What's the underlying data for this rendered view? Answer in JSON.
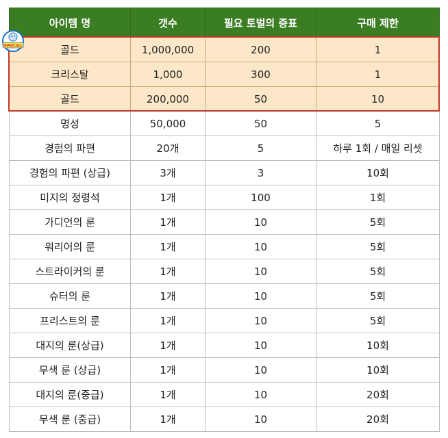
{
  "table": {
    "headers": [
      "아이템 명",
      "갯수",
      "필요 토벌의 증표",
      "구매 제한"
    ],
    "rows": [
      [
        "골드",
        "1,000,000",
        "200",
        "1"
      ],
      [
        "크리스탈",
        "1,000",
        "300",
        "1"
      ],
      [
        "골드",
        "200,000",
        "50",
        "10"
      ],
      [
        "명성",
        "50,000",
        "50",
        "5"
      ],
      [
        "경험의 파편",
        "20개",
        "5",
        "하루 1회 / 매일 리셋"
      ],
      [
        "경험의 파편 (상급)",
        "3개",
        "3",
        "10회"
      ],
      [
        "미지의 정령석",
        "1개",
        "100",
        "1회"
      ],
      [
        "가디언의 룬",
        "1개",
        "10",
        "5회"
      ],
      [
        "워리어의 룬",
        "1개",
        "10",
        "5회"
      ],
      [
        "스트라이커의 룬",
        "1개",
        "10",
        "5회"
      ],
      [
        "슈터의 룬",
        "1개",
        "10",
        "5회"
      ],
      [
        "프리스트의 룬",
        "1개",
        "10",
        "5회"
      ],
      [
        "대지의 룬(상급)",
        "1개",
        "10",
        "10회"
      ],
      [
        "무색 룬 (상급)",
        "1개",
        "10",
        "10회"
      ],
      [
        "대지의 룬(중급)",
        "1개",
        "10",
        "20회"
      ],
      [
        "무색 룬 (중급)",
        "1개",
        "10",
        "20회"
      ]
    ],
    "special_row_count": 3
  },
  "stamp": {
    "text": "SPECIAL",
    "colors": {
      "ring": "#1e73be",
      "text": "#d32f2f"
    }
  },
  "colors": {
    "header_bg": "#3a7d22",
    "special_bg": "#fce8c8",
    "highlight_border": "#c0392b"
  }
}
